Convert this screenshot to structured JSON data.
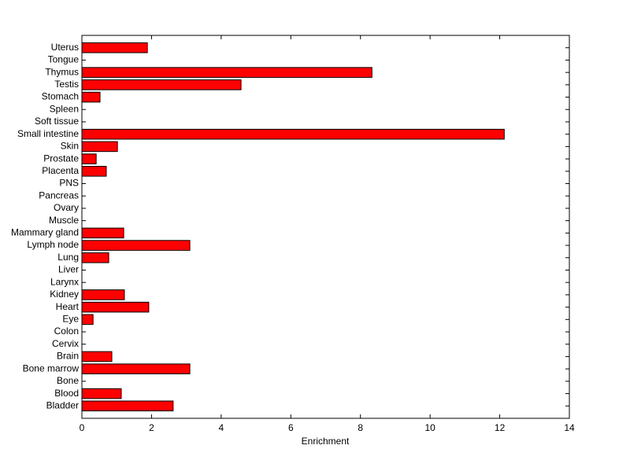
{
  "chart_data": {
    "type": "bar",
    "orientation": "horizontal",
    "x_label": "Enrichment",
    "categories": [
      "Bladder",
      "Blood",
      "Bone",
      "Bone marrow",
      "Brain",
      "Cervix",
      "Colon",
      "Eye",
      "Heart",
      "Kidney",
      "Larynx",
      "Liver",
      "Lung",
      "Lymph node",
      "Mammary gland",
      "Muscle",
      "Ovary",
      "Pancreas",
      "PNS",
      "Placenta",
      "Prostate",
      "Skin",
      "Small intestine",
      "Soft tissue",
      "Spleen",
      "Stomach",
      "Testis",
      "Thymus",
      "Tongue",
      "Uterus"
    ],
    "values": [
      2.62,
      1.13,
      0,
      3.1,
      0.86,
      0,
      0,
      0.32,
      1.92,
      1.22,
      0,
      0,
      0.77,
      3.1,
      1.2,
      0,
      0,
      0,
      0,
      0.7,
      0.41,
      1.02,
      12.13,
      0,
      0,
      0.52,
      4.57,
      8.33,
      0,
      1.88
    ],
    "color": "#ff0000",
    "xlim": [
      0,
      14
    ],
    "xticks": [
      0,
      2,
      4,
      6,
      8,
      10,
      12,
      14
    ],
    "grid": false
  }
}
